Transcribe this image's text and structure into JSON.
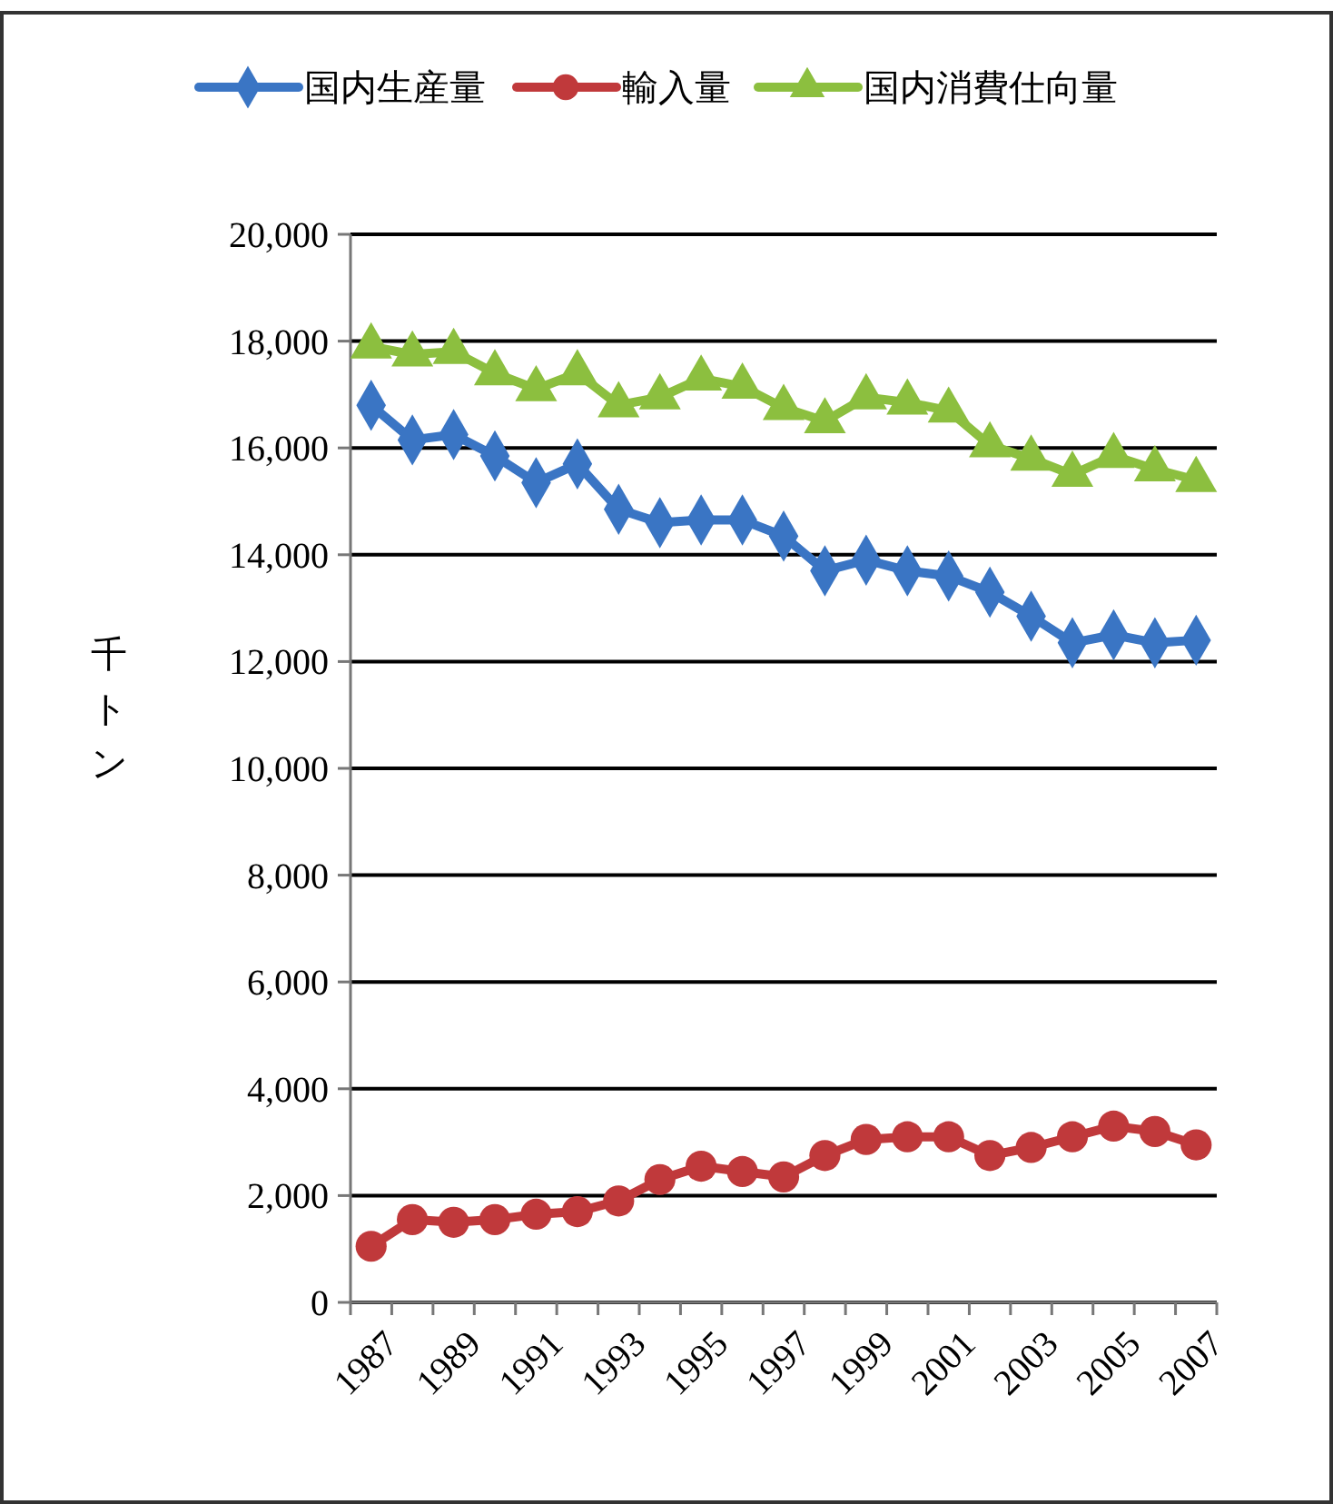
{
  "chart_data": {
    "type": "line",
    "ylabel": "千トン",
    "categories": [
      "1987",
      null,
      "1989",
      null,
      "1991",
      null,
      "1993",
      null,
      "1995",
      null,
      "1997",
      null,
      "1999",
      null,
      "2001",
      null,
      "2003",
      null,
      "2005",
      null,
      "2007"
    ],
    "series": [
      {
        "name": "国内生産量",
        "color": "#3a75c4",
        "marker": "diamond",
        "values": [
          16800,
          16150,
          16250,
          15850,
          15350,
          15700,
          14850,
          14600,
          14650,
          14650,
          14350,
          13700,
          13900,
          13700,
          13600,
          13300,
          12850,
          12350,
          12500,
          12350,
          12400
        ]
      },
      {
        "name": "輸入量",
        "color": "#c0393b",
        "marker": "circle",
        "values": [
          1050,
          1550,
          1500,
          1550,
          1650,
          1700,
          1900,
          2300,
          2550,
          2450,
          2350,
          2750,
          3050,
          3100,
          3100,
          2750,
          2900,
          3100,
          3300,
          3200,
          2950
        ]
      },
      {
        "name": "国内消費仕向量",
        "color": "#8cbf3f",
        "marker": "triangle",
        "values": [
          17900,
          17750,
          17800,
          17400,
          17100,
          17400,
          16800,
          16950,
          17300,
          17150,
          16750,
          16500,
          16950,
          16850,
          16700,
          16050,
          15800,
          15500,
          15850,
          15600,
          15400
        ]
      }
    ],
    "ylim": [
      0,
      20000
    ],
    "yticks": [
      {
        "value": 0,
        "label": "0"
      },
      {
        "value": 2000,
        "label": "2,000"
      },
      {
        "value": 4000,
        "label": "4,000"
      },
      {
        "value": 6000,
        "label": "6,000"
      },
      {
        "value": 8000,
        "label": "8,000"
      },
      {
        "value": 10000,
        "label": "10,000"
      },
      {
        "value": 12000,
        "label": "12,000"
      },
      {
        "value": 14000,
        "label": "14,000"
      },
      {
        "value": 16000,
        "label": "16,000"
      },
      {
        "value": 18000,
        "label": "18,000"
      },
      {
        "value": 20000,
        "label": "20,000"
      }
    ],
    "grid": "y",
    "legend": "top"
  }
}
